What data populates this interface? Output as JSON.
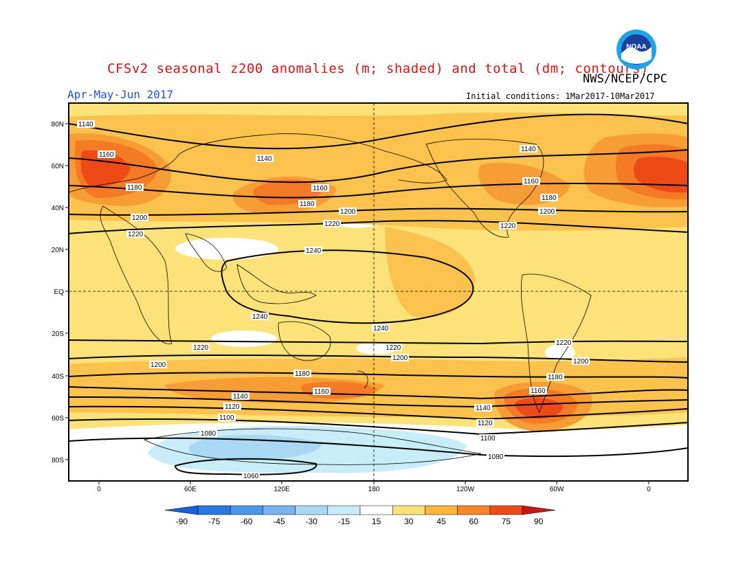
{
  "title": "CFSv2 seasonal z200 anomalies (m; shaded) and total (dm; contours)",
  "season": "Apr-May-Jun 2017",
  "agency": "NWS/NCEP/CPC",
  "initial_conditions": "Initial conditions: 1Mar2017-10Mar2017",
  "logo_text": "NOAA",
  "lat_labels": [
    "80N",
    "60N",
    "40N",
    "20N",
    "EQ",
    "20S",
    "40S",
    "60S",
    "80S"
  ],
  "lon_labels": [
    "0",
    "60E",
    "120E",
    "180",
    "120W",
    "60W",
    "0"
  ],
  "colorbar": {
    "labels": [
      "-90",
      "-75",
      "-60",
      "-45",
      "-30",
      "-15",
      "15",
      "30",
      "45",
      "60",
      "75",
      "90"
    ],
    "colors": [
      "#1860d8",
      "#2878e0",
      "#4a96ec",
      "#78b4f0",
      "#a8d8f4",
      "#c8ecf8",
      "#ffffff",
      "#fde27a",
      "#fcb43a",
      "#f7862b",
      "#ee4a18",
      "#c81810"
    ]
  },
  "contour_labels": {
    "c1060": "1060",
    "c1080": "1080",
    "c1100": "1100",
    "c1120": "1120",
    "c1140": "1140",
    "c1160": "1160",
    "c1180": "1180",
    "c1200": "1200",
    "c1220": "1220",
    "c1240": "1240"
  },
  "colors": {
    "title": "#e01010",
    "subtitle": "#2050e0"
  }
}
